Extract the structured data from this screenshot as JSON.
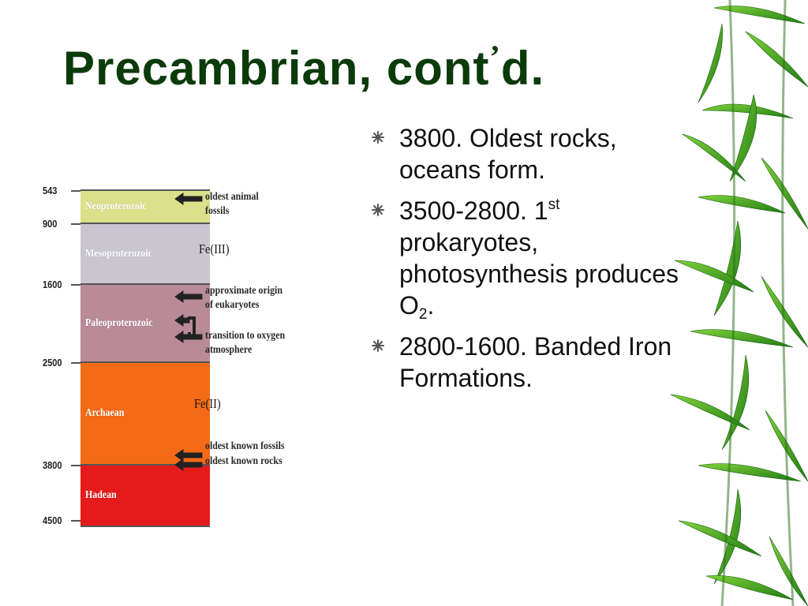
{
  "title": {
    "main": "Precambrian, cont",
    "apostrophe": "’",
    "end": "d."
  },
  "timeline": {
    "ticks": [
      "543",
      "900",
      "1600",
      "2500",
      "3800",
      "4500"
    ],
    "eras": [
      {
        "name": "Neoproterozoic",
        "color": "#dbe08a"
      },
      {
        "name": "Mesoproterozoic",
        "color": "#c9c6d0"
      },
      {
        "name": "Paleoproterozoic",
        "color": "#b98a98"
      },
      {
        "name": "Archaean",
        "color": "#f46a16"
      },
      {
        "name": "Hadean",
        "color": "#e51b1b"
      }
    ],
    "annotations": {
      "oldest_animal": [
        "oldest animal",
        "fossils"
      ],
      "eukaryotes": [
        "approximate origin",
        "of eukaryotes"
      ],
      "oxygen": [
        "transition to oxygen",
        "atmosphere"
      ],
      "oldest_fossils": "oldest known fossils",
      "oldest_rocks": "oldest known rocks"
    },
    "fe_labels": {
      "upper": "Fe(III)",
      "lower": "Fe(II)"
    }
  },
  "bullets": {
    "b1": {
      "text": "3800.  Oldest rocks, oceans form."
    },
    "b2": {
      "pre": "3500-2800. 1",
      "sup": "st",
      "mid": " prokaryotes, photosynthesis produces O",
      "sub": "2",
      "post": "."
    },
    "b3": {
      "text": "2800-1600. Banded Iron Formations."
    }
  },
  "icons": {
    "bullet": "asterisk-bullet-icon",
    "decoration": "bamboo-leaves"
  }
}
